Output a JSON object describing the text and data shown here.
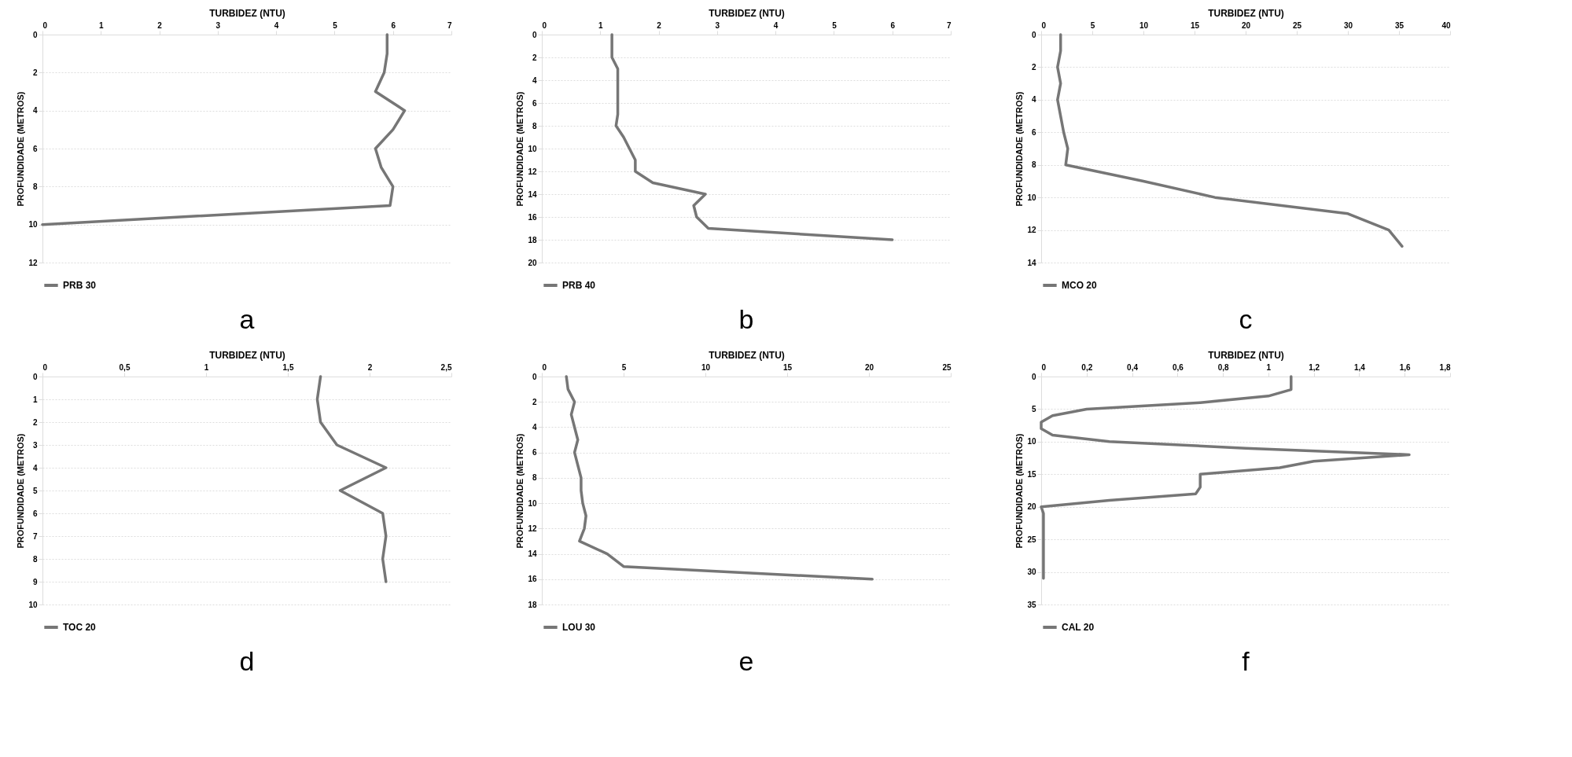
{
  "chart_data": [
    {
      "type": "line",
      "xlabel": "TURBIDEZ (NTU)",
      "ylabel": "PROFUNDIDADE (METROS)",
      "annotations": [
        "a"
      ],
      "xlim": [
        0,
        7
      ],
      "xticks": [
        0,
        1,
        2,
        3,
        4,
        5,
        6,
        7
      ],
      "ylim": [
        12,
        0
      ],
      "yticks": [
        0,
        2,
        4,
        6,
        8,
        10,
        12
      ],
      "grid": "y",
      "legend": "bottom",
      "line_style": "solid",
      "series": [
        {
          "name": "PRB 30",
          "color": "#767676",
          "x": [
            5.9,
            5.9,
            5.85,
            5.7,
            6.2,
            6.0,
            5.7,
            5.8,
            6.0,
            5.95,
            0
          ],
          "values": [
            0,
            1,
            2,
            3,
            4,
            5,
            6,
            7,
            8,
            9,
            10
          ]
        }
      ]
    },
    {
      "type": "line",
      "xlabel": "TURBIDEZ (NTU)",
      "ylabel": "PROFUNDIDADE (METROS)",
      "annotations": [
        "b"
      ],
      "xlim": [
        0,
        7
      ],
      "xticks": [
        0,
        1,
        2,
        3,
        4,
        5,
        6,
        7
      ],
      "ylim": [
        20,
        0
      ],
      "yticks": [
        0,
        2,
        4,
        6,
        8,
        10,
        12,
        14,
        16,
        18,
        20
      ],
      "grid": "y",
      "legend": "bottom",
      "line_style": "solid",
      "series": [
        {
          "name": "PRB 40",
          "color": "#767676",
          "x": [
            1.2,
            1.2,
            1.2,
            1.3,
            1.3,
            1.3,
            1.3,
            1.3,
            1.27,
            1.4,
            1.5,
            1.6,
            1.6,
            1.9,
            2.8,
            2.6,
            2.65,
            2.85,
            6.0
          ],
          "values": [
            0,
            1,
            2,
            3,
            4,
            5,
            6,
            7,
            8,
            9,
            10,
            11,
            12,
            13,
            14,
            15,
            16,
            17,
            18
          ]
        }
      ]
    },
    {
      "type": "line",
      "xlabel": "TURBIDEZ (NTU)",
      "ylabel": "PROFUNDIDADE (METROS)",
      "annotations": [
        "c"
      ],
      "xlim": [
        0,
        40
      ],
      "xticks": [
        0,
        5,
        10,
        15,
        20,
        25,
        30,
        35,
        40
      ],
      "ylim": [
        14,
        0
      ],
      "yticks": [
        0,
        2,
        4,
        6,
        8,
        10,
        12,
        14
      ],
      "grid": "y",
      "legend": "bottom",
      "line_style": "solid",
      "series": [
        {
          "name": "MCO 20",
          "color": "#767676",
          "x": [
            1.9,
            1.9,
            1.6,
            1.9,
            1.6,
            1.9,
            2.2,
            2.6,
            2.4,
            10,
            17,
            30,
            34,
            35.3
          ],
          "values": [
            0,
            1,
            2,
            3,
            4,
            5,
            6,
            7,
            8,
            9,
            10,
            11,
            12,
            13
          ]
        }
      ]
    },
    {
      "type": "line",
      "xlabel": "TURBIDEZ (NTU)",
      "ylabel": "PROFUNDIDADE (METROS)",
      "annotations": [
        "d"
      ],
      "xlim": [
        0,
        2.5
      ],
      "xticks": [
        0,
        {
          "value": 0.5,
          "label": "0,5"
        },
        1,
        {
          "value": 1.5,
          "label": "1,5"
        },
        2,
        {
          "value": 2.5,
          "label": "2,5"
        }
      ],
      "ylim": [
        10,
        0
      ],
      "yticks": [
        0,
        1,
        2,
        3,
        4,
        5,
        6,
        7,
        8,
        9,
        10
      ],
      "grid": "y",
      "legend": "bottom",
      "line_style": "solid",
      "series": [
        {
          "name": "TOC 20",
          "color": "#767676",
          "x": [
            1.7,
            1.68,
            1.7,
            1.8,
            2.1,
            1.82,
            2.08,
            2.1,
            2.08,
            2.1
          ],
          "values": [
            0,
            1,
            2,
            3,
            4,
            5,
            6,
            7,
            8,
            9
          ]
        }
      ]
    },
    {
      "type": "line",
      "xlabel": "TURBIDEZ (NTU)",
      "ylabel": "PROFUNDIDADE (METROS)",
      "annotations": [
        "e"
      ],
      "xlim": [
        0,
        25
      ],
      "xticks": [
        0,
        5,
        10,
        15,
        20,
        25
      ],
      "ylim": [
        18,
        0
      ],
      "yticks": [
        0,
        2,
        4,
        6,
        8,
        10,
        12,
        14,
        16,
        18
      ],
      "grid": "y",
      "legend": "bottom",
      "line_style": "solid",
      "series": [
        {
          "name": "LOU 30",
          "color": "#767676",
          "x": [
            1.5,
            1.6,
            2.0,
            1.8,
            2.0,
            2.2,
            2.0,
            2.2,
            2.4,
            2.4,
            2.5,
            2.7,
            2.6,
            2.3,
            4.0,
            5.0,
            20.2
          ],
          "values": [
            0,
            1,
            2,
            3,
            4,
            5,
            6,
            7,
            8,
            9,
            10,
            11,
            12,
            13,
            14,
            15,
            16
          ]
        }
      ]
    },
    {
      "type": "line",
      "xlabel": "TURBIDEZ (NTU)",
      "ylabel": "PROFUNDIDADE (METROS)",
      "annotations": [
        "f"
      ],
      "xlim": [
        0,
        1.8
      ],
      "xticks": [
        0,
        {
          "value": 0.2,
          "label": "0,2"
        },
        {
          "value": 0.4,
          "label": "0,4"
        },
        {
          "value": 0.6,
          "label": "0,6"
        },
        {
          "value": 0.8,
          "label": "0,8"
        },
        1,
        {
          "value": 1.2,
          "label": "1,2"
        },
        {
          "value": 1.4,
          "label": "1,4"
        },
        {
          "value": 1.6,
          "label": "1,6"
        },
        {
          "value": 1.8,
          "label": "1,8"
        }
      ],
      "ylim": [
        35,
        0
      ],
      "yticks": [
        0,
        5,
        10,
        15,
        20,
        25,
        30,
        35
      ],
      "grid": "y",
      "legend": "bottom",
      "line_style": "solid",
      "series": [
        {
          "name": "CAL 20",
          "color": "#767676",
          "x": [
            1.1,
            1.1,
            1.1,
            1.0,
            0.7,
            0.2,
            0.05,
            0,
            0,
            0.05,
            0.3,
            0.9,
            1.62,
            1.2,
            1.05,
            0.7,
            0.7,
            0.7,
            0.68,
            0.3,
            0,
            0.01,
            0.01
          ],
          "values": [
            0,
            1,
            2,
            3,
            4,
            5,
            6,
            7,
            8,
            9,
            10,
            11,
            12,
            13,
            14,
            15,
            16,
            17,
            18,
            19,
            20,
            21,
            31
          ]
        }
      ]
    }
  ]
}
